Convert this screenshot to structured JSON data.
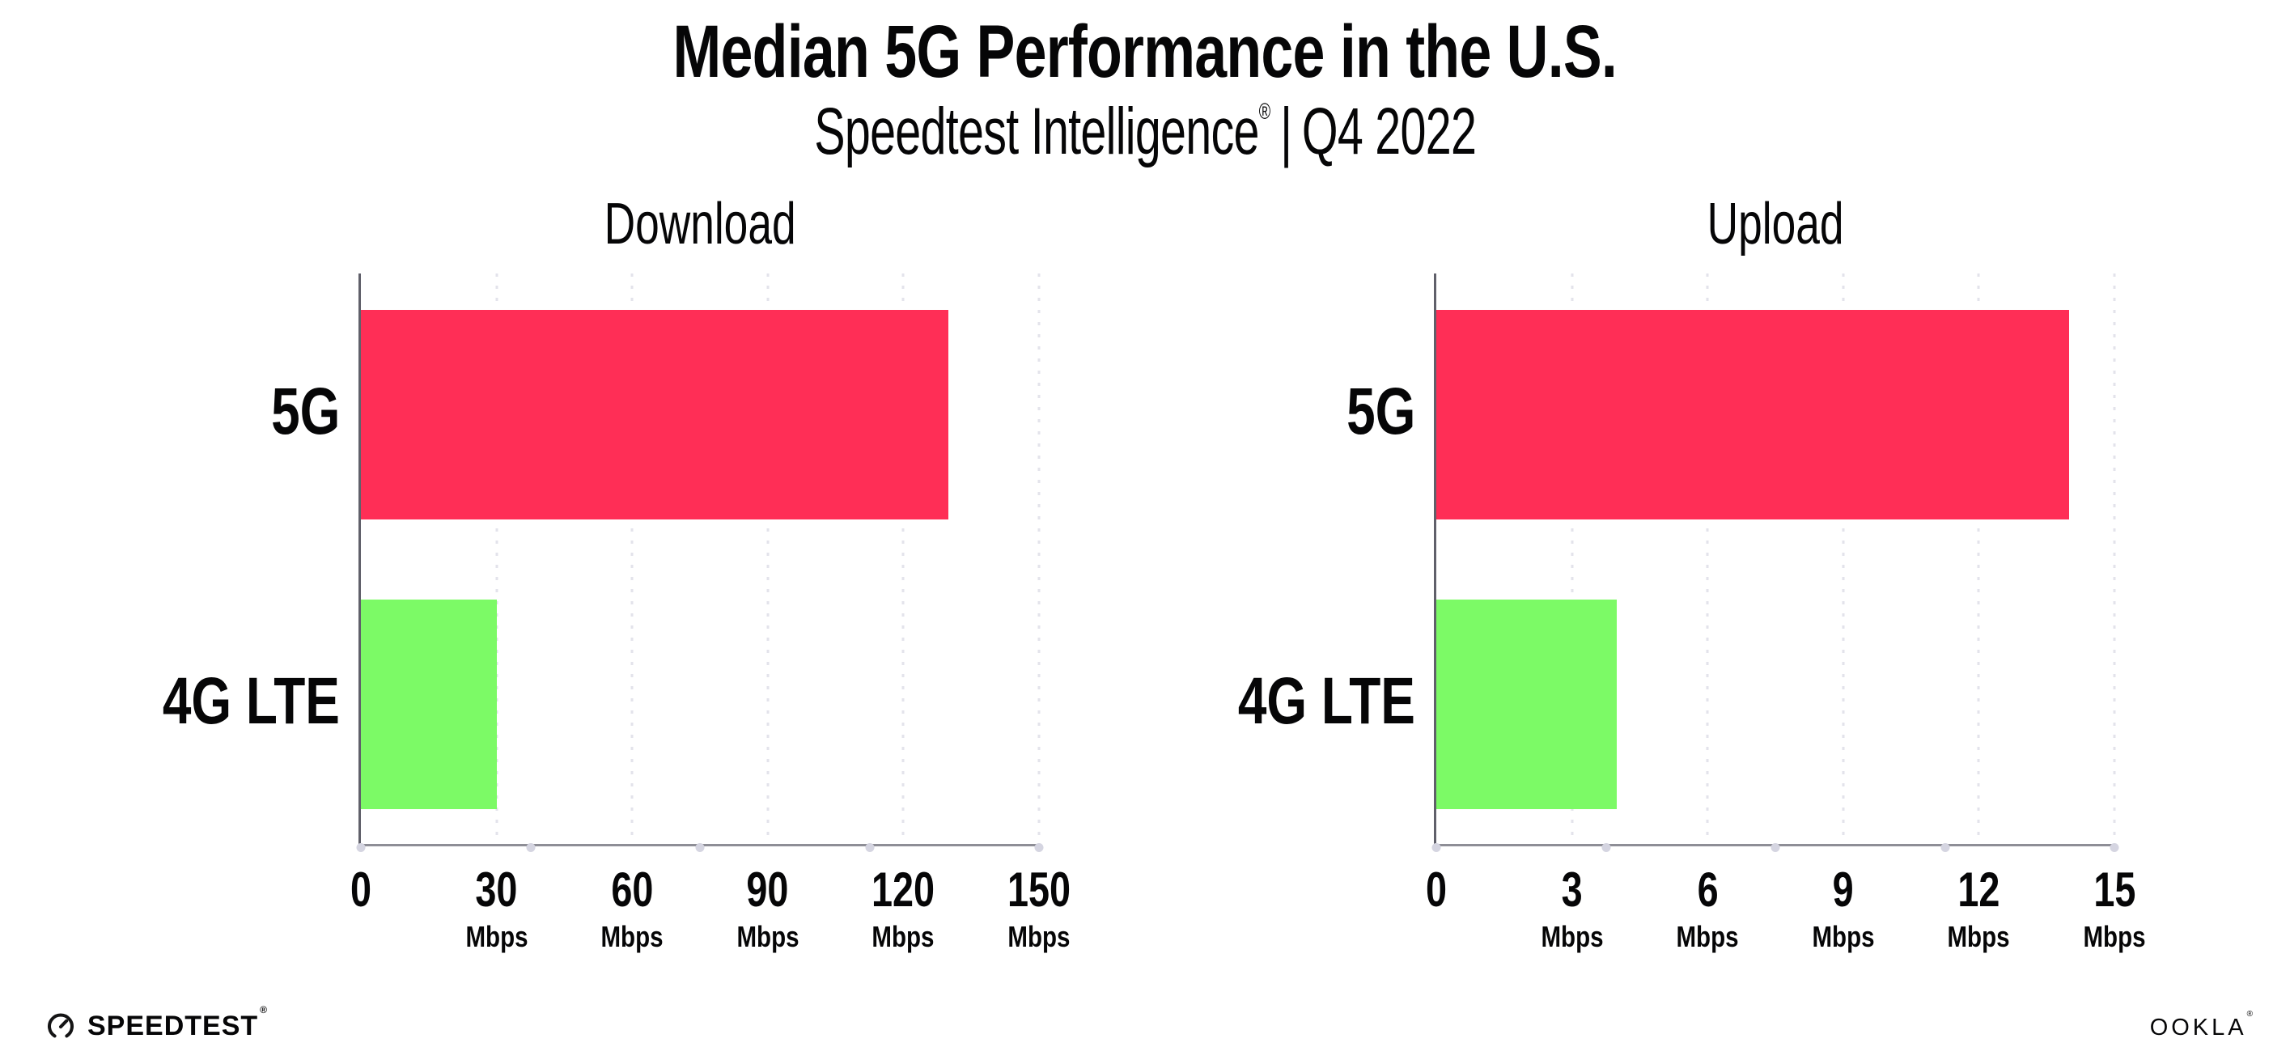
{
  "header": {
    "title": "Median 5G Performance in the U.S.",
    "subtitle_brand": "Speedtest Intelligence",
    "subtitle_reg": "®",
    "subtitle_separator": "|",
    "subtitle_period": "Q4 2022"
  },
  "chart_data": [
    {
      "type": "bar",
      "orientation": "horizontal",
      "title": "Download",
      "categories": [
        "5G",
        "4G LTE"
      ],
      "values": [
        130,
        30
      ],
      "unit": "Mbps",
      "xlim": [
        0,
        150
      ],
      "xticks": [
        0,
        30,
        60,
        90,
        120,
        150
      ],
      "xlabel": "",
      "ylabel": "",
      "legend": "none",
      "grid": "vertical-dotted",
      "bar_colors": [
        "#FF2E56",
        "#7CFA66"
      ]
    },
    {
      "type": "bar",
      "orientation": "horizontal",
      "title": "Upload",
      "categories": [
        "5G",
        "4G LTE"
      ],
      "values": [
        14,
        4
      ],
      "unit": "Mbps",
      "xlim": [
        0,
        15
      ],
      "xticks": [
        0,
        3,
        6,
        9,
        12,
        15
      ],
      "xlabel": "",
      "ylabel": "",
      "legend": "none",
      "grid": "vertical-dotted",
      "bar_colors": [
        "#FF2E56",
        "#7CFA66"
      ]
    }
  ],
  "footer": {
    "speedtest_label": "SPEEDTEST",
    "speedtest_reg": "®",
    "ookla_label": "OOKLA",
    "ookla_reg": "®"
  },
  "colors": {
    "bar_5g": "#FF2E56",
    "bar_4g_lte": "#7CFA66",
    "y_axis": "#60606A",
    "x_axis": "#8E8E96",
    "gridline": "#E3E3EB",
    "tick_dot": "#D5D5E1",
    "text": "#060607",
    "background": "#FFFFFF"
  }
}
